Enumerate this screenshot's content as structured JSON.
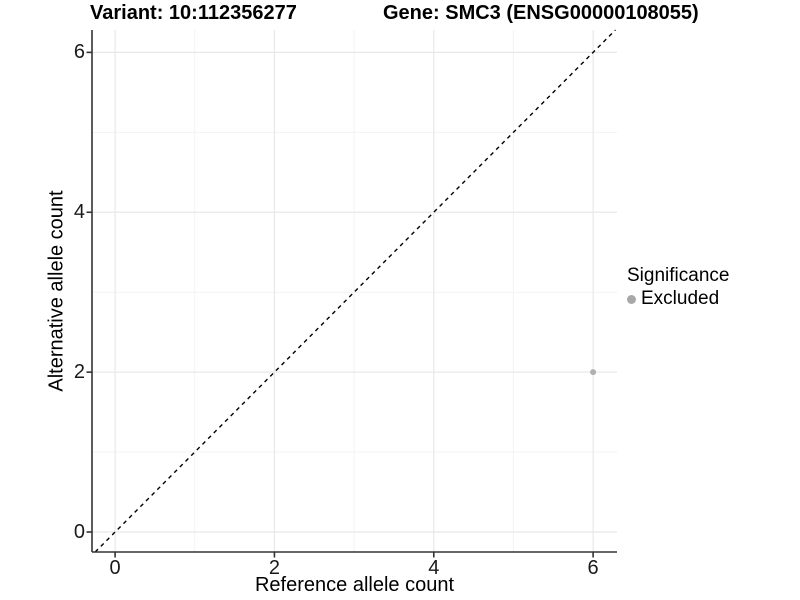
{
  "header": {
    "title_left": "Variant: 10:112356277",
    "title_right": "Gene: SMC3 (ENSG00000108055)"
  },
  "chart_data": {
    "type": "scatter",
    "title_left": "Variant: 10:112356277",
    "title_right": "Gene: SMC3 (ENSG00000108055)",
    "xlabel": "Reference allele count",
    "ylabel": "Alternative allele count",
    "x_ticks": [
      0,
      2,
      4,
      6
    ],
    "y_ticks": [
      0,
      2,
      4,
      6
    ],
    "x_minor_ticks": [
      1,
      3,
      5
    ],
    "y_minor_ticks": [
      1,
      3,
      5
    ],
    "xlim": [
      -0.29,
      6.3
    ],
    "ylim": [
      -0.25,
      6.28
    ],
    "grid": "major+minor",
    "reference_line": {
      "kind": "identity y=x",
      "dashed": true,
      "color": "#000000"
    },
    "series": [
      {
        "name": "Excluded",
        "marker": "circle",
        "color": "#b0b0b0",
        "points": [
          [
            6,
            2
          ]
        ]
      }
    ],
    "legend": {
      "title": "Significance",
      "position": "right",
      "items": [
        {
          "label": "Excluded",
          "color": "#a8a8a8"
        }
      ]
    },
    "colors": {
      "background": "#ffffff",
      "grid_major": "#e8e8e8",
      "grid_minor": "#f3f3f3",
      "axis_line": "#333333",
      "tick_label": "#1a1a1a",
      "point": "#b0b0b0"
    }
  }
}
